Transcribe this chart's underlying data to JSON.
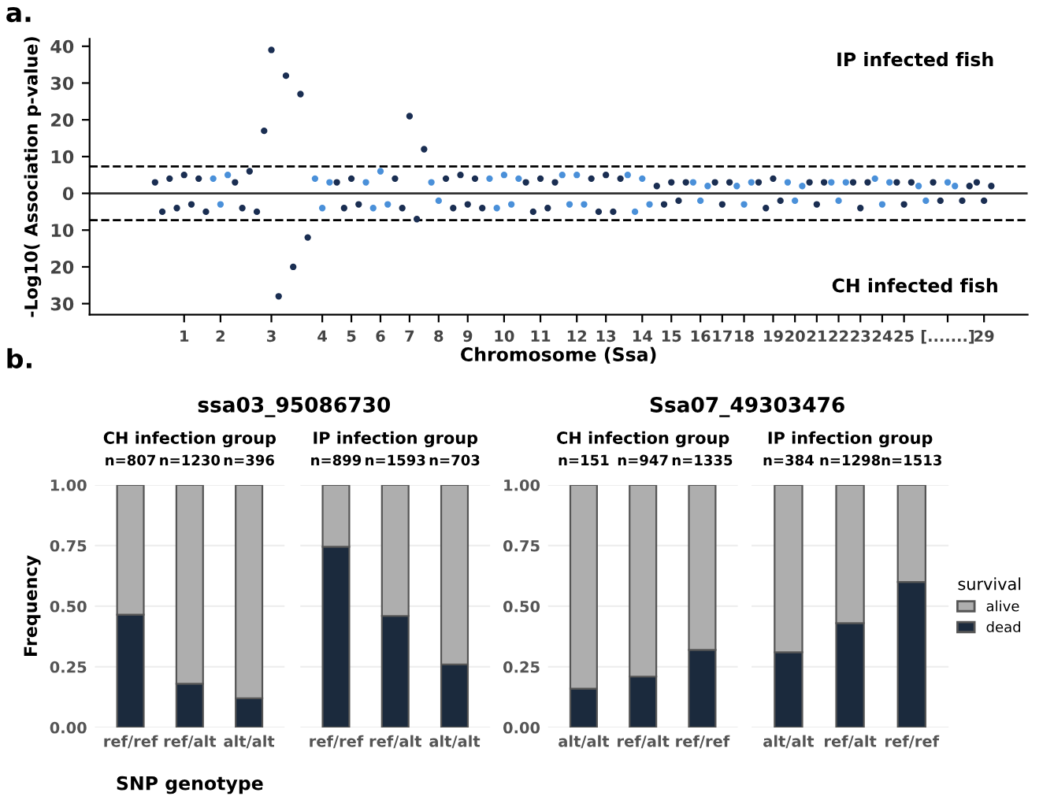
{
  "chart_data": [
    {
      "type": "scatter",
      "xlabel": "Chromosome (Ssa)",
      "ylabel": "-Log10( Association p-value)",
      "annotations": [
        "a.",
        "IP infected fish",
        "CH infected fish"
      ],
      "marker": "circle",
      "grid": false,
      "categories": [
        null,
        null,
        null,
        null,
        "1",
        null,
        null,
        null,
        null,
        "2",
        null,
        null,
        null,
        null,
        null,
        null,
        "3",
        null,
        null,
        null,
        null,
        null,
        null,
        "4",
        null,
        null,
        null,
        "5",
        null,
        null,
        null,
        "6",
        null,
        null,
        null,
        "7",
        null,
        null,
        null,
        "8",
        null,
        null,
        null,
        "9",
        null,
        null,
        null,
        null,
        "10",
        null,
        null,
        null,
        null,
        "11",
        null,
        null,
        null,
        null,
        "12",
        null,
        null,
        null,
        "13",
        null,
        null,
        null,
        null,
        "14",
        null,
        null,
        null,
        "15",
        null,
        null,
        null,
        "16",
        null,
        null,
        "17",
        null,
        null,
        "18",
        null,
        null,
        null,
        "19",
        null,
        null,
        "20",
        null,
        null,
        "21",
        null,
        null,
        "22",
        null,
        null,
        "23",
        null,
        null,
        "24",
        null,
        null,
        "25",
        null,
        null,
        null,
        null,
        null,
        "[.......]",
        null,
        null,
        null,
        null,
        "29",
        null
      ],
      "ylim": [
        -33,
        42
      ],
      "yticks": [
        {
          "value": -30,
          "label": "30"
        },
        {
          "value": -20,
          "label": "20"
        },
        {
          "value": -10,
          "label": "10"
        },
        0,
        10,
        20,
        30,
        40
      ],
      "ref_lines": [
        {
          "axis": "y",
          "value": 7.3,
          "line_style": "dashed",
          "color": "#000000"
        },
        {
          "axis": "y",
          "value": -7.3,
          "line_style": "dashed",
          "color": "#000000"
        },
        {
          "axis": "y",
          "value": 0,
          "line_style": "solid",
          "color": "#333333"
        }
      ],
      "series": [
        {
          "color": "#1a2e52",
          "values": [
            3,
            -5,
            4,
            -4,
            5,
            -3,
            4,
            -5,
            null,
            null,
            null,
            3,
            -4,
            6,
            -5,
            17,
            39,
            -28,
            32,
            -20,
            27,
            -12,
            null,
            null,
            null,
            3,
            -4,
            4,
            -3,
            null,
            null,
            null,
            null,
            4,
            -4,
            21,
            -7,
            12,
            null,
            null,
            4,
            -4,
            5,
            -3,
            4,
            -4,
            null,
            null,
            null,
            null,
            null,
            3,
            -5,
            4,
            -4,
            3,
            null,
            null,
            null,
            null,
            4,
            -5,
            5,
            -5,
            4,
            null,
            null,
            null,
            null,
            2,
            -3,
            3,
            -2,
            3,
            null,
            null,
            null,
            3,
            -3,
            3,
            null,
            null,
            null,
            3,
            -4,
            4,
            -2,
            null,
            null,
            null,
            3,
            -3,
            3,
            null,
            null,
            null,
            3,
            -4,
            3,
            null,
            null,
            null,
            3,
            -3,
            3,
            null,
            null,
            3,
            -2,
            null,
            null,
            -2,
            2,
            3,
            -2,
            2
          ]
        },
        {
          "color": "#4a90d9",
          "values": [
            null,
            null,
            null,
            null,
            null,
            null,
            null,
            null,
            4,
            -3,
            5,
            null,
            null,
            null,
            null,
            null,
            null,
            null,
            null,
            null,
            null,
            null,
            4,
            -4,
            3,
            null,
            null,
            null,
            null,
            3,
            -4,
            6,
            -3,
            null,
            null,
            null,
            null,
            null,
            3,
            -2,
            null,
            null,
            null,
            null,
            null,
            null,
            4,
            -4,
            5,
            -3,
            4,
            null,
            null,
            null,
            null,
            null,
            5,
            -3,
            5,
            -3,
            null,
            null,
            null,
            null,
            null,
            5,
            -5,
            4,
            -3,
            null,
            null,
            null,
            null,
            null,
            3,
            -2,
            2,
            null,
            null,
            null,
            2,
            -3,
            3,
            null,
            null,
            null,
            null,
            3,
            -2,
            2,
            null,
            null,
            null,
            3,
            -2,
            3,
            null,
            null,
            null,
            4,
            -3,
            3,
            null,
            null,
            null,
            2,
            -2,
            null,
            null,
            3,
            2,
            null,
            null,
            null,
            null,
            null
          ]
        }
      ]
    },
    {
      "type": "bar",
      "stacked": true,
      "title": "ssa03_95086730",
      "subtitle": "CH infection group",
      "ylabel": "Frequency",
      "xlabel": "SNP genotype",
      "grid": "y",
      "annotations": [
        "b.",
        {
          "text": "n=807",
          "x": "ref/ref",
          "y": 1
        },
        {
          "text": "n=1230",
          "x": "ref/alt",
          "y": 1
        },
        {
          "text": "n=396",
          "x": "alt/alt",
          "y": 1
        }
      ],
      "categories": [
        "ref/ref",
        "ref/alt",
        "alt/alt"
      ],
      "ylim": [
        0,
        1
      ],
      "yticks": [
        {
          "value": 0,
          "label": "0.00"
        },
        {
          "value": 0.25,
          "label": "0.25"
        },
        {
          "value": 0.5,
          "label": "0.50"
        },
        {
          "value": 0.75,
          "label": "0.75"
        },
        {
          "value": 1,
          "label": "1.00"
        }
      ],
      "series": [
        {
          "color": "#1b2a3d",
          "values": [
            0.465,
            0.18,
            0.12
          ]
        },
        {
          "color": "#aeaeae",
          "values": [
            0.535,
            0.82,
            0.88
          ]
        }
      ]
    },
    {
      "type": "bar",
      "stacked": true,
      "subtitle": "IP infection group",
      "grid": "y",
      "tick_labels": "x",
      "annotations": [
        {
          "text": "n=899",
          "x": "ref/ref",
          "y": 1
        },
        {
          "text": "n=1593",
          "x": "ref/alt",
          "y": 1
        },
        {
          "text": "n=703",
          "x": "alt/alt",
          "y": 1
        }
      ],
      "categories": [
        "ref/ref",
        "ref/alt",
        "alt/alt"
      ],
      "ylim": [
        0,
        1
      ],
      "yticks": [
        {
          "value": 0,
          "label": null
        },
        {
          "value": 0.25,
          "label": null
        },
        {
          "value": 0.5,
          "label": null
        },
        {
          "value": 0.75,
          "label": null
        },
        {
          "value": 1,
          "label": null
        }
      ],
      "series": [
        {
          "color": "#1b2a3d",
          "values": [
            0.745,
            0.46,
            0.26
          ]
        },
        {
          "color": "#aeaeae",
          "values": [
            0.255,
            0.54,
            0.74
          ]
        }
      ]
    },
    {
      "type": "bar",
      "stacked": true,
      "title": "Ssa07_49303476",
      "subtitle": "CH infection group",
      "grid": "y",
      "annotations": [
        {
          "text": "n=151",
          "x": "alt/alt",
          "y": 1
        },
        {
          "text": "n=947",
          "x": "ref/alt",
          "y": 1
        },
        {
          "text": "n=1335",
          "x": "ref/ref",
          "y": 1
        }
      ],
      "categories": [
        "alt/alt",
        "ref/alt",
        "ref/ref"
      ],
      "ylim": [
        0,
        1
      ],
      "yticks": [
        {
          "value": 0,
          "label": "0.00"
        },
        {
          "value": 0.25,
          "label": "0.25"
        },
        {
          "value": 0.5,
          "label": "0.50"
        },
        {
          "value": 0.75,
          "label": "0.75"
        },
        {
          "value": 1,
          "label": "1.00"
        }
      ],
      "series": [
        {
          "color": "#1b2a3d",
          "values": [
            0.16,
            0.21,
            0.32
          ]
        },
        {
          "color": "#aeaeae",
          "values": [
            0.84,
            0.79,
            0.68
          ]
        }
      ]
    },
    {
      "type": "bar",
      "stacked": true,
      "subtitle": "IP infection group",
      "grid": "y",
      "legend": "right",
      "legend_title": "survival",
      "tick_labels": "x",
      "annotations": [
        {
          "text": "n=384",
          "x": "alt/alt",
          "y": 1
        },
        {
          "text": "n=1298",
          "x": "ref/alt",
          "y": 1
        },
        {
          "text": "n=1513",
          "x": "ref/ref",
          "y": 1
        }
      ],
      "categories": [
        "alt/alt",
        "ref/alt",
        "ref/ref"
      ],
      "ylim": [
        0,
        1
      ],
      "yticks": [
        {
          "value": 0,
          "label": null
        },
        {
          "value": 0.25,
          "label": null
        },
        {
          "value": 0.5,
          "label": null
        },
        {
          "value": 0.75,
          "label": null
        },
        {
          "value": 1,
          "label": null
        }
      ],
      "series": [
        {
          "name": "dead",
          "color": "#1b2a3d",
          "values": [
            0.31,
            0.43,
            0.6
          ]
        },
        {
          "name": "alive",
          "color": "#aeaeae",
          "values": [
            0.69,
            0.57,
            0.4
          ]
        }
      ]
    }
  ]
}
